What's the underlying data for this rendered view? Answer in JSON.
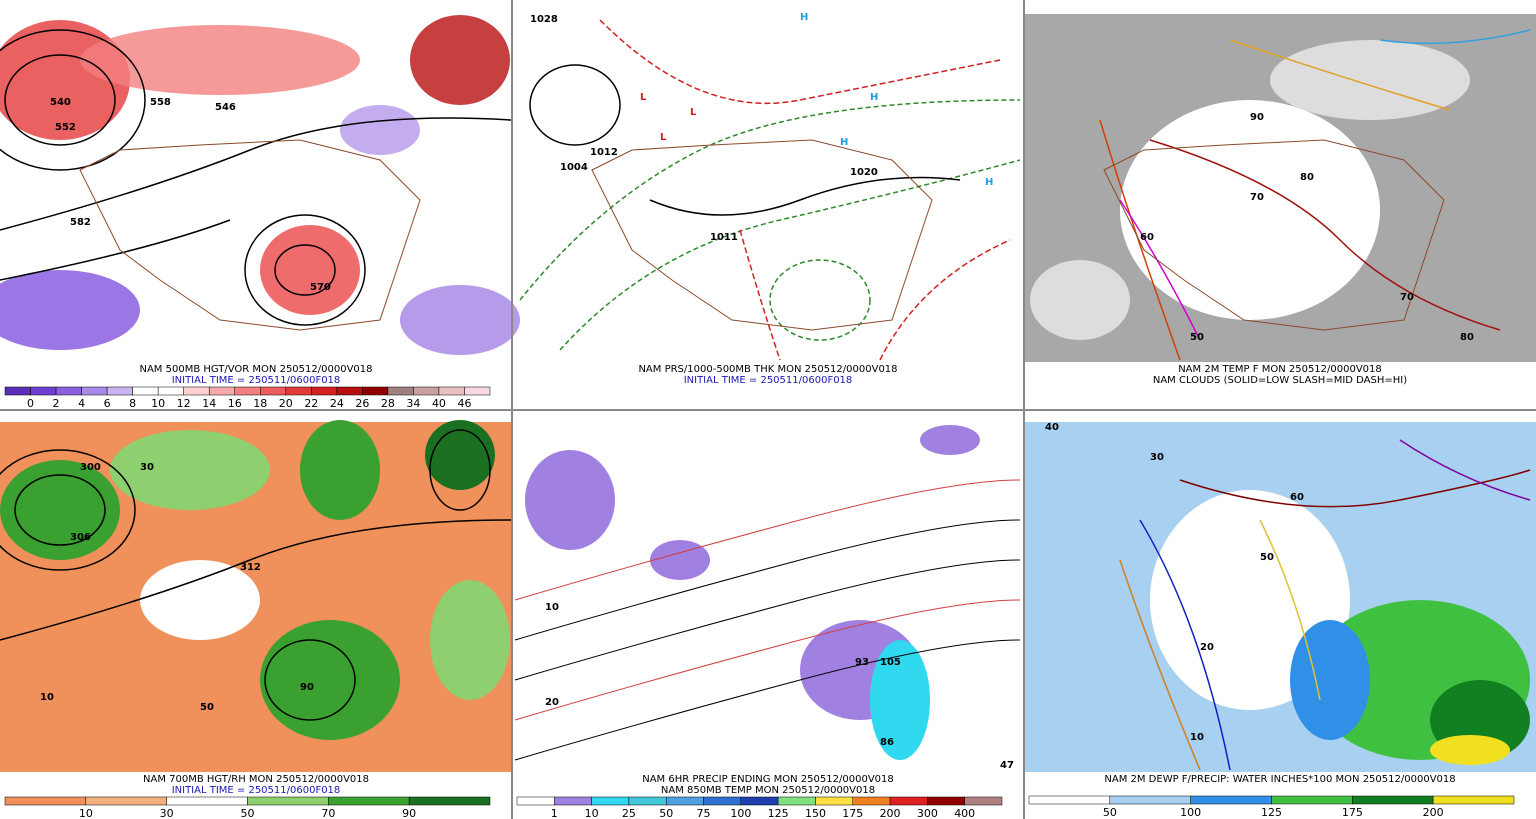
{
  "panels": [
    {
      "caption": [
        "NAM 500MB HGT/VOR MON 250512/0000V018",
        "INITIAL TIME = 250511/0600F018"
      ],
      "map_labels": [
        "582",
        "570",
        "552",
        "540",
        "558",
        "546"
      ],
      "colorbar": {
        "labels": [
          "0",
          "2",
          "4",
          "6",
          "8",
          "10",
          "12",
          "14",
          "16",
          "18",
          "20",
          "22",
          "24",
          "26",
          "28",
          "34",
          "40",
          "46"
        ],
        "colors": [
          "#5a2fb8",
          "#6e3fd0",
          "#8a5fe0",
          "#a98ae8",
          "#c9b4f0",
          "#ffffff",
          "#ffffff",
          "#fbd0d0",
          "#f7a8a8",
          "#f28080",
          "#ec5c5c",
          "#e33a3a",
          "#d42020",
          "#b81010",
          "#900000",
          "#a08080",
          "#c8a0a0",
          "#e8c0c0",
          "#f8d8e0"
        ]
      }
    },
    {
      "caption": [
        "NAM PRS/1000-500MB THK MON 250512/0000V018",
        "INITIAL TIME = 250511/0600F018"
      ],
      "map_labels": [
        "1004",
        "1012",
        "1020",
        "1028",
        "1011",
        "L",
        "L",
        "L",
        "H",
        "H",
        "H",
        "H"
      ]
    },
    {
      "caption": [
        "NAM 2M TEMP F MON 250512/0000V018",
        "NAM CLOUDS (SOLID=LOW SLASH=MID DASH=HI)"
      ],
      "map_labels": [
        "70",
        "80",
        "60",
        "50",
        "90",
        "70",
        "80"
      ]
    },
    {
      "caption": [
        "NAM 700MB HGT/RH MON 250512/0000V018",
        "INITIAL TIME = 250511/0600F018"
      ],
      "map_labels": [
        "306",
        "312",
        "300",
        "10",
        "50",
        "90",
        "30"
      ],
      "colorbar": {
        "labels": [
          "10",
          "30",
          "50",
          "70",
          "90"
        ],
        "colors": [
          "#f0905a",
          "#f5b080",
          "#ffffff",
          "#8ed070",
          "#3aa030",
          "#1a7020"
        ]
      }
    },
    {
      "caption": [
        "NAM 6HR PRECIP ENDING MON 250512/0000V018",
        "NAM 850MB TEMP MON 250512/0000V018"
      ],
      "map_labels": [
        "10",
        "20",
        "105",
        "93",
        "86",
        "47"
      ],
      "colorbar": {
        "labels": [
          "1",
          "10",
          "25",
          "50",
          "75",
          "100",
          "125",
          "150",
          "175",
          "200",
          "300",
          "400"
        ],
        "colors": [
          "#ffffff",
          "#a080e0",
          "#30d8f0",
          "#40c8d8",
          "#50a0e0",
          "#3070d0",
          "#2040b0",
          "#80e080",
          "#ffe040",
          "#f08020",
          "#e02020",
          "#900000",
          "#b08080"
        ]
      }
    },
    {
      "caption": [
        "NAM 2M DEWP F/PRECIP: WATER INCHES*100 MON 250512/0000V018"
      ],
      "map_labels": [
        "40",
        "30",
        "20",
        "50",
        "60",
        "10"
      ],
      "colorbar": {
        "labels": [
          "50",
          "100",
          "125",
          "175",
          "200"
        ],
        "colors": [
          "#ffffff",
          "#a8d0f0",
          "#3090e8",
          "#40c040",
          "#108020",
          "#f0e020"
        ]
      }
    }
  ]
}
